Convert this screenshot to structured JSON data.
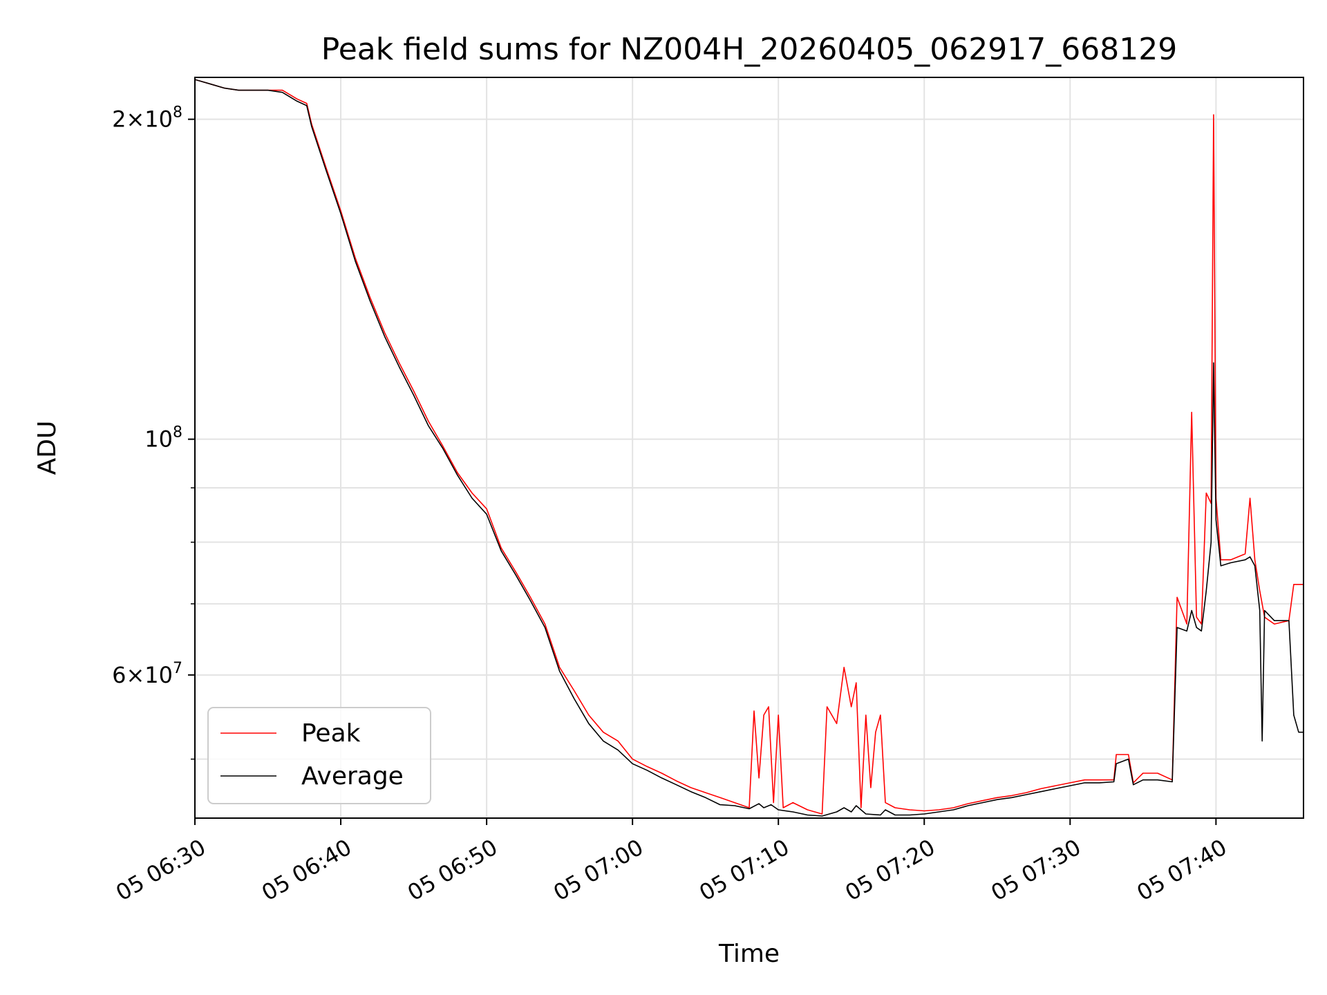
{
  "chart_data": {
    "type": "line",
    "title": "Peak field sums for NZ004H_20260405_062917_668129",
    "xlabel": "Time",
    "ylabel": "ADU",
    "y_scale": "log",
    "xlim": [
      "05 06:30",
      "05 07:46"
    ],
    "ylim": [
      44000000,
      219000000
    ],
    "grid": true,
    "legend_position": "lower-left",
    "x_ticks": [
      "05 06:30",
      "05 06:40",
      "05 06:50",
      "05 07:00",
      "05 07:10",
      "05 07:20",
      "05 07:30",
      "05 07:40"
    ],
    "y_tick_labels": [
      {
        "value": 200000000,
        "base": "2×10",
        "exp": "8"
      },
      {
        "value": 100000000,
        "base": "10",
        "exp": "8"
      },
      {
        "value": 60000000,
        "base": "6×10",
        "exp": "7"
      }
    ],
    "y_minor_ticks": [
      50000000,
      70000000,
      80000000,
      90000000
    ],
    "series": [
      {
        "name": "Peak",
        "color": "#ff0000",
        "points": [
          [
            "05 06:30",
            218000000
          ],
          [
            "05 06:31",
            216000000
          ],
          [
            "05 06:32",
            214000000
          ],
          [
            "05 06:33",
            213000000
          ],
          [
            "05 06:34",
            213000000
          ],
          [
            "05 06:35",
            213000000
          ],
          [
            "05 06:36",
            213000000
          ],
          [
            "05 06:37",
            209000000
          ],
          [
            "05 06:37:40",
            207000000
          ],
          [
            "05 06:38",
            198000000
          ],
          [
            "05 06:39",
            180000000
          ],
          [
            "05 06:40",
            164000000
          ],
          [
            "05 06:41",
            148000000
          ],
          [
            "05 06:42",
            136000000
          ],
          [
            "05 06:43",
            126000000
          ],
          [
            "05 06:44",
            118000000
          ],
          [
            "05 06:45",
            111000000
          ],
          [
            "05 06:46",
            104000000
          ],
          [
            "05 06:47",
            98500000
          ],
          [
            "05 06:48",
            93000000
          ],
          [
            "05 06:49",
            89000000
          ],
          [
            "05 06:50",
            86000000
          ],
          [
            "05 06:51",
            79000000
          ],
          [
            "05 06:52",
            75000000
          ],
          [
            "05 06:53",
            71000000
          ],
          [
            "05 06:54",
            67000000
          ],
          [
            "05 06:55",
            61000000
          ],
          [
            "05 06:56",
            58000000
          ],
          [
            "05 06:57",
            55000000
          ],
          [
            "05 06:58",
            53000000
          ],
          [
            "05 06:59",
            52000000
          ],
          [
            "05 07:00",
            50000000
          ],
          [
            "05 07:01",
            49200000
          ],
          [
            "05 07:02",
            48500000
          ],
          [
            "05 07:03",
            47700000
          ],
          [
            "05 07:04",
            47000000
          ],
          [
            "05 07:05",
            46500000
          ],
          [
            "05 07:06",
            46000000
          ],
          [
            "05 07:07",
            45500000
          ],
          [
            "05 07:08",
            45000000
          ],
          [
            "05 07:08:20",
            55500000
          ],
          [
            "05 07:08:40",
            48000000
          ],
          [
            "05 07:09",
            55000000
          ],
          [
            "05 07:09:20",
            56000000
          ],
          [
            "05 07:09:40",
            45500000
          ],
          [
            "05 07:10",
            55000000
          ],
          [
            "05 07:10:20",
            45000000
          ],
          [
            "05 07:11",
            45500000
          ],
          [
            "05 07:12",
            44800000
          ],
          [
            "05 07:13",
            44400000
          ],
          [
            "05 07:13:20",
            56000000
          ],
          [
            "05 07:14",
            54000000
          ],
          [
            "05 07:14:30",
            61000000
          ],
          [
            "05 07:15",
            56000000
          ],
          [
            "05 07:15:20",
            59000000
          ],
          [
            "05 07:15:40",
            45000000
          ],
          [
            "05 07:16",
            55000000
          ],
          [
            "05 07:16:20",
            47000000
          ],
          [
            "05 07:16:40",
            53000000
          ],
          [
            "05 07:17",
            55000000
          ],
          [
            "05 07:17:20",
            45500000
          ],
          [
            "05 07:18",
            45000000
          ],
          [
            "05 07:19",
            44800000
          ],
          [
            "05 07:20",
            44700000
          ],
          [
            "05 07:21",
            44800000
          ],
          [
            "05 07:22",
            45000000
          ],
          [
            "05 07:23",
            45400000
          ],
          [
            "05 07:24",
            45700000
          ],
          [
            "05 07:25",
            46000000
          ],
          [
            "05 07:26",
            46200000
          ],
          [
            "05 07:27",
            46500000
          ],
          [
            "05 07:28",
            46900000
          ],
          [
            "05 07:29",
            47200000
          ],
          [
            "05 07:30",
            47500000
          ],
          [
            "05 07:31",
            47800000
          ],
          [
            "05 07:32",
            47800000
          ],
          [
            "05 07:33",
            47800000
          ],
          [
            "05 07:33:10",
            50500000
          ],
          [
            "05 07:34",
            50500000
          ],
          [
            "05 07:34:20",
            47500000
          ],
          [
            "05 07:35",
            48500000
          ],
          [
            "05 07:36",
            48500000
          ],
          [
            "05 07:37",
            47800000
          ],
          [
            "05 07:37:20",
            71000000
          ],
          [
            "05 07:38",
            67000000
          ],
          [
            "05 07:38:20",
            106000000
          ],
          [
            "05 07:38:40",
            68000000
          ],
          [
            "05 07:39",
            67000000
          ],
          [
            "05 07:39:20",
            89000000
          ],
          [
            "05 07:39:40",
            87000000
          ],
          [
            "05 07:39:50",
            202000000
          ],
          [
            "05 07:40",
            88000000
          ],
          [
            "05 07:40:20",
            77000000
          ],
          [
            "05 07:41",
            77000000
          ],
          [
            "05 07:42",
            78000000
          ],
          [
            "05 07:42:20",
            88000000
          ],
          [
            "05 07:42:40",
            77000000
          ],
          [
            "05 07:43",
            72000000
          ],
          [
            "05 07:43:20",
            68000000
          ],
          [
            "05 07:44",
            67000000
          ],
          [
            "05 07:45",
            67500000
          ],
          [
            "05 07:45:20",
            73000000
          ],
          [
            "05 07:46",
            73000000
          ]
        ]
      },
      {
        "name": "Average",
        "color": "#000000",
        "points": [
          [
            "05 06:30",
            218000000
          ],
          [
            "05 06:31",
            216000000
          ],
          [
            "05 06:32",
            214000000
          ],
          [
            "05 06:33",
            213000000
          ],
          [
            "05 06:34",
            213000000
          ],
          [
            "05 06:35",
            213000000
          ],
          [
            "05 06:36",
            212000000
          ],
          [
            "05 06:37",
            208000000
          ],
          [
            "05 06:37:40",
            206000000
          ],
          [
            "05 06:38",
            197000000
          ],
          [
            "05 06:39",
            179000000
          ],
          [
            "05 06:40",
            163000000
          ],
          [
            "05 06:41",
            147000000
          ],
          [
            "05 06:42",
            135000000
          ],
          [
            "05 06:43",
            125000000
          ],
          [
            "05 06:44",
            117000000
          ],
          [
            "05 06:45",
            110000000
          ],
          [
            "05 06:46",
            103000000
          ],
          [
            "05 06:47",
            98000000
          ],
          [
            "05 06:48",
            92500000
          ],
          [
            "05 06:49",
            88000000
          ],
          [
            "05 06:50",
            85000000
          ],
          [
            "05 06:51",
            78500000
          ],
          [
            "05 06:52",
            74500000
          ],
          [
            "05 06:53",
            70500000
          ],
          [
            "05 06:54",
            66500000
          ],
          [
            "05 06:55",
            60500000
          ],
          [
            "05 06:56",
            57000000
          ],
          [
            "05 06:57",
            54000000
          ],
          [
            "05 06:58",
            52000000
          ],
          [
            "05 06:59",
            51000000
          ],
          [
            "05 07:00",
            49500000
          ],
          [
            "05 07:01",
            48800000
          ],
          [
            "05 07:02",
            48000000
          ],
          [
            "05 07:03",
            47300000
          ],
          [
            "05 07:04",
            46600000
          ],
          [
            "05 07:05",
            46000000
          ],
          [
            "05 07:06",
            45300000
          ],
          [
            "05 07:07",
            45200000
          ],
          [
            "05 07:08",
            44900000
          ],
          [
            "05 07:08:40",
            45400000
          ],
          [
            "05 07:09",
            45000000
          ],
          [
            "05 07:09:30",
            45300000
          ],
          [
            "05 07:10",
            44800000
          ],
          [
            "05 07:11",
            44600000
          ],
          [
            "05 07:12",
            44300000
          ],
          [
            "05 07:13",
            44200000
          ],
          [
            "05 07:14",
            44600000
          ],
          [
            "05 07:14:30",
            45000000
          ],
          [
            "05 07:15",
            44600000
          ],
          [
            "05 07:15:20",
            45200000
          ],
          [
            "05 07:16",
            44400000
          ],
          [
            "05 07:17",
            44300000
          ],
          [
            "05 07:17:20",
            44800000
          ],
          [
            "05 07:18",
            44300000
          ],
          [
            "05 07:19",
            44300000
          ],
          [
            "05 07:20",
            44400000
          ],
          [
            "05 07:21",
            44600000
          ],
          [
            "05 07:22",
            44800000
          ],
          [
            "05 07:23",
            45200000
          ],
          [
            "05 07:24",
            45500000
          ],
          [
            "05 07:25",
            45800000
          ],
          [
            "05 07:26",
            46000000
          ],
          [
            "05 07:27",
            46300000
          ],
          [
            "05 07:28",
            46600000
          ],
          [
            "05 07:29",
            46900000
          ],
          [
            "05 07:30",
            47200000
          ],
          [
            "05 07:31",
            47500000
          ],
          [
            "05 07:32",
            47500000
          ],
          [
            "05 07:33",
            47600000
          ],
          [
            "05 07:33:10",
            49500000
          ],
          [
            "05 07:34",
            50000000
          ],
          [
            "05 07:34:20",
            47300000
          ],
          [
            "05 07:35",
            47800000
          ],
          [
            "05 07:36",
            47800000
          ],
          [
            "05 07:37",
            47600000
          ],
          [
            "05 07:37:20",
            66500000
          ],
          [
            "05 07:38",
            66000000
          ],
          [
            "05 07:38:20",
            69000000
          ],
          [
            "05 07:38:40",
            66500000
          ],
          [
            "05 07:39",
            66000000
          ],
          [
            "05 07:39:20",
            72000000
          ],
          [
            "05 07:39:40",
            80000000
          ],
          [
            "05 07:39:50",
            118000000
          ],
          [
            "05 07:40",
            84000000
          ],
          [
            "05 07:40:20",
            76000000
          ],
          [
            "05 07:41",
            76500000
          ],
          [
            "05 07:42",
            77000000
          ],
          [
            "05 07:42:20",
            77500000
          ],
          [
            "05 07:42:40",
            76000000
          ],
          [
            "05 07:43",
            69000000
          ],
          [
            "05 07:43:10",
            52000000
          ],
          [
            "05 07:43:20",
            69000000
          ],
          [
            "05 07:44",
            67500000
          ],
          [
            "05 07:45",
            67500000
          ],
          [
            "05 07:45:20",
            55000000
          ],
          [
            "05 07:45:40",
            53000000
          ],
          [
            "05 07:46",
            53000000
          ]
        ]
      }
    ]
  }
}
